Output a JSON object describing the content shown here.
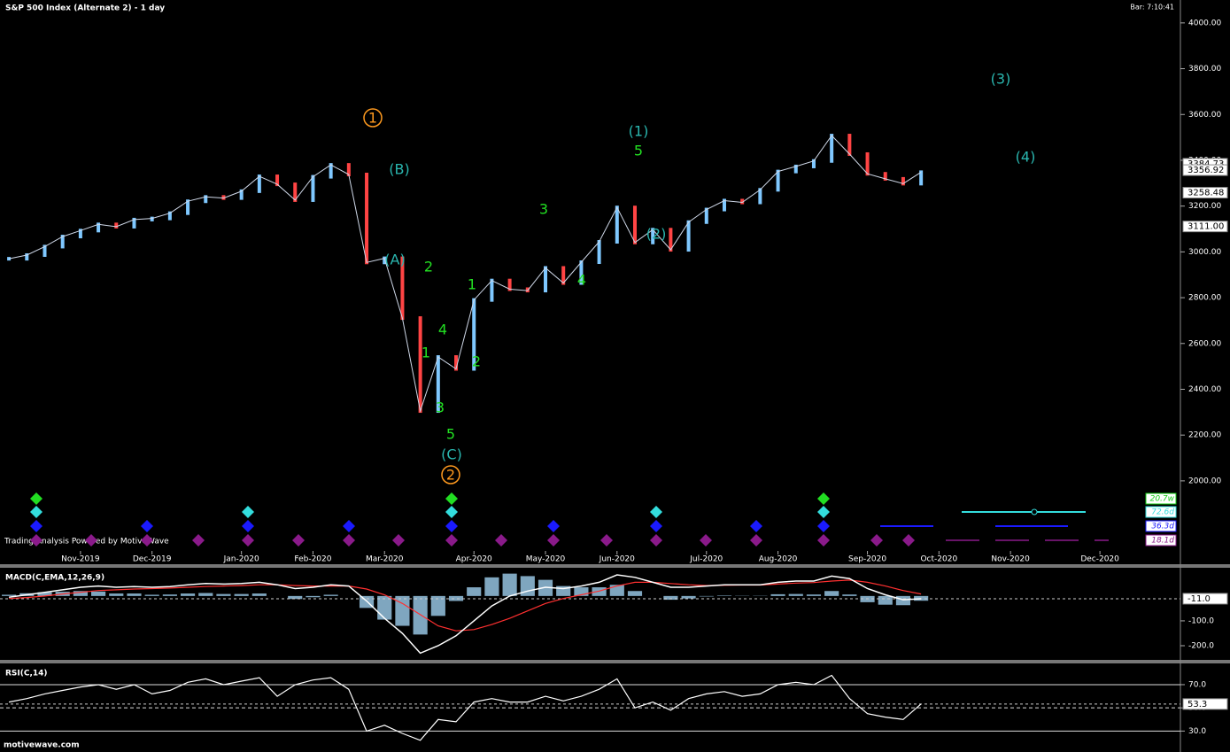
{
  "header": {
    "title": "S&P 500 Index (Alternate 2) - 1 day",
    "bar_time": "Bar: 7:10:41"
  },
  "watermark": "Trading Analysis Powered by MotiveWave",
  "footer": "motivewave.com",
  "cycles": [
    "20.7w",
    "72.6d",
    "36.3d",
    "18.1d"
  ],
  "chart_data": [
    {
      "type": "line",
      "color": "#cfd8e8",
      "categories": [
        null,
        null,
        null,
        null,
        "Nov-2019",
        null,
        null,
        null,
        "Dec-2019",
        null,
        null,
        null,
        null,
        "Jan-2020",
        null,
        null,
        null,
        "Feb-2020",
        null,
        null,
        null,
        "Mar-2020",
        null,
        null,
        null,
        null,
        "Apr-2020",
        null,
        null,
        null,
        "May-2020",
        null,
        null,
        null,
        "Jun-2020",
        null,
        null,
        null,
        null,
        "Jul-2020",
        null,
        null,
        null,
        "Aug-2020",
        null,
        null,
        null,
        null,
        "Sep-2020",
        null,
        null,
        null,
        "Oct-2020",
        null,
        null,
        null,
        "Nov-2020",
        null,
        null,
        null,
        null,
        "Dec-2020",
        null,
        null,
        null,
        null
      ],
      "values": [
        2970,
        2986,
        3023,
        3067,
        3093,
        3120,
        3110,
        3141,
        3146,
        3169,
        3221,
        3240,
        3235,
        3265,
        3330,
        3295,
        3226,
        3328,
        3380,
        3338,
        2954,
        2972,
        2711,
        2305,
        2541,
        2489,
        2790,
        2875,
        2837,
        2831,
        2930,
        2864,
        2955,
        3044,
        3194,
        3041,
        3097,
        3009,
        3130,
        3185,
        3224,
        3216,
        3271,
        3351,
        3373,
        3397,
        3508,
        3427,
        3341,
        3319,
        3298,
        3348,
        null,
        null,
        null,
        null,
        null,
        null,
        null,
        null,
        null,
        null,
        null,
        null,
        null,
        null
      ],
      "ylim": [
        1694,
        4100
      ],
      "yticks": [
        {
          "value": 2000,
          "label": "2000.00"
        },
        {
          "value": 2200,
          "label": "2200.00"
        },
        {
          "value": 2400,
          "label": "2400.00"
        },
        {
          "value": 2600,
          "label": "2600.00"
        },
        {
          "value": 2800,
          "label": "2800.00"
        },
        {
          "value": 3000,
          "label": "3000.00"
        },
        {
          "value": 3200,
          "label": "3200.00"
        },
        {
          "value": 3400,
          "label": "3400.00"
        },
        {
          "value": 3600,
          "label": "3600.00"
        },
        {
          "value": 3800,
          "label": "3800.00"
        },
        {
          "value": 4000,
          "label": "4000.00"
        }
      ],
      "markers": {
        "values": [
          3384.73,
          3356.92,
          3258.48,
          3111
        ],
        "value_labels": [
          "3384.73",
          "3356.92",
          "3258.48",
          "3111.00"
        ]
      },
      "annotations": [
        "1",
        "(B)",
        "(A)",
        "2",
        "1",
        "4",
        "1",
        "2",
        "3",
        "5",
        "(C)",
        "2",
        "(1)",
        "5",
        "3",
        "4",
        "(2)",
        "(3)",
        "(4)"
      ]
    },
    {
      "type": "macd",
      "title": "MACD(C,EMA,12,26,9)",
      "macd": [
        -5,
        5,
        15,
        25,
        35,
        40,
        35,
        38,
        35,
        38,
        45,
        50,
        48,
        50,
        55,
        45,
        30,
        35,
        45,
        40,
        -20,
        -90,
        -150,
        -230,
        -200,
        -160,
        -100,
        -40,
        0,
        20,
        35,
        30,
        40,
        55,
        85,
        75,
        55,
        35,
        35,
        40,
        45,
        45,
        45,
        55,
        60,
        60,
        80,
        70,
        30,
        5,
        -15,
        -11
      ],
      "signal": [
        -10,
        -6,
        0,
        8,
        15,
        22,
        25,
        28,
        30,
        32,
        35,
        38,
        40,
        42,
        45,
        45,
        42,
        40,
        40,
        40,
        28,
        5,
        -30,
        -75,
        -120,
        -140,
        -135,
        -115,
        -90,
        -60,
        -30,
        -10,
        5,
        20,
        40,
        55,
        55,
        50,
        45,
        42,
        43,
        44,
        44,
        48,
        52,
        54,
        60,
        64,
        55,
        40,
        22,
        8
      ],
      "histogram": [
        5,
        11,
        15,
        17,
        20,
        18,
        10,
        10,
        5,
        6,
        10,
        12,
        8,
        8,
        10,
        0,
        -12,
        -5,
        5,
        0,
        -48,
        -95,
        -120,
        -155,
        -80,
        -20,
        35,
        75,
        90,
        80,
        65,
        40,
        35,
        35,
        45,
        20,
        0,
        -15,
        -10,
        -2,
        2,
        1,
        1,
        7,
        8,
        6,
        20,
        6,
        -25,
        -35,
        -37,
        -19
      ],
      "ylim": [
        -257,
        110
      ],
      "yticks": [
        {
          "value": -100,
          "label": "-100.0"
        },
        {
          "value": -200,
          "label": "-200.0"
        }
      ],
      "markers": {
        "values": [
          -11
        ],
        "value_labels": [
          "-11.0"
        ]
      }
    },
    {
      "type": "rsi",
      "title": "RSI(C,14)",
      "color": "#ffffff",
      "values": [
        55,
        58,
        62,
        65,
        68,
        70,
        66,
        70,
        62,
        65,
        72,
        75,
        70,
        73,
        76,
        60,
        70,
        74,
        76,
        66,
        30,
        35,
        28,
        22,
        40,
        38,
        55,
        58,
        55,
        55,
        60,
        56,
        60,
        66,
        75,
        50,
        55,
        48,
        58,
        62,
        64,
        60,
        62,
        70,
        72,
        70,
        78,
        58,
        45,
        42,
        40,
        53.3
      ],
      "ylim": [
        15,
        86
      ],
      "yticks": [
        {
          "value": 30,
          "label": "30.0"
        },
        {
          "value": 50,
          "label": "50.0"
        },
        {
          "value": 70,
          "label": "70.0"
        }
      ],
      "markers": {
        "values": [
          53.3
        ],
        "value_labels": [
          "53.3"
        ]
      }
    }
  ]
}
